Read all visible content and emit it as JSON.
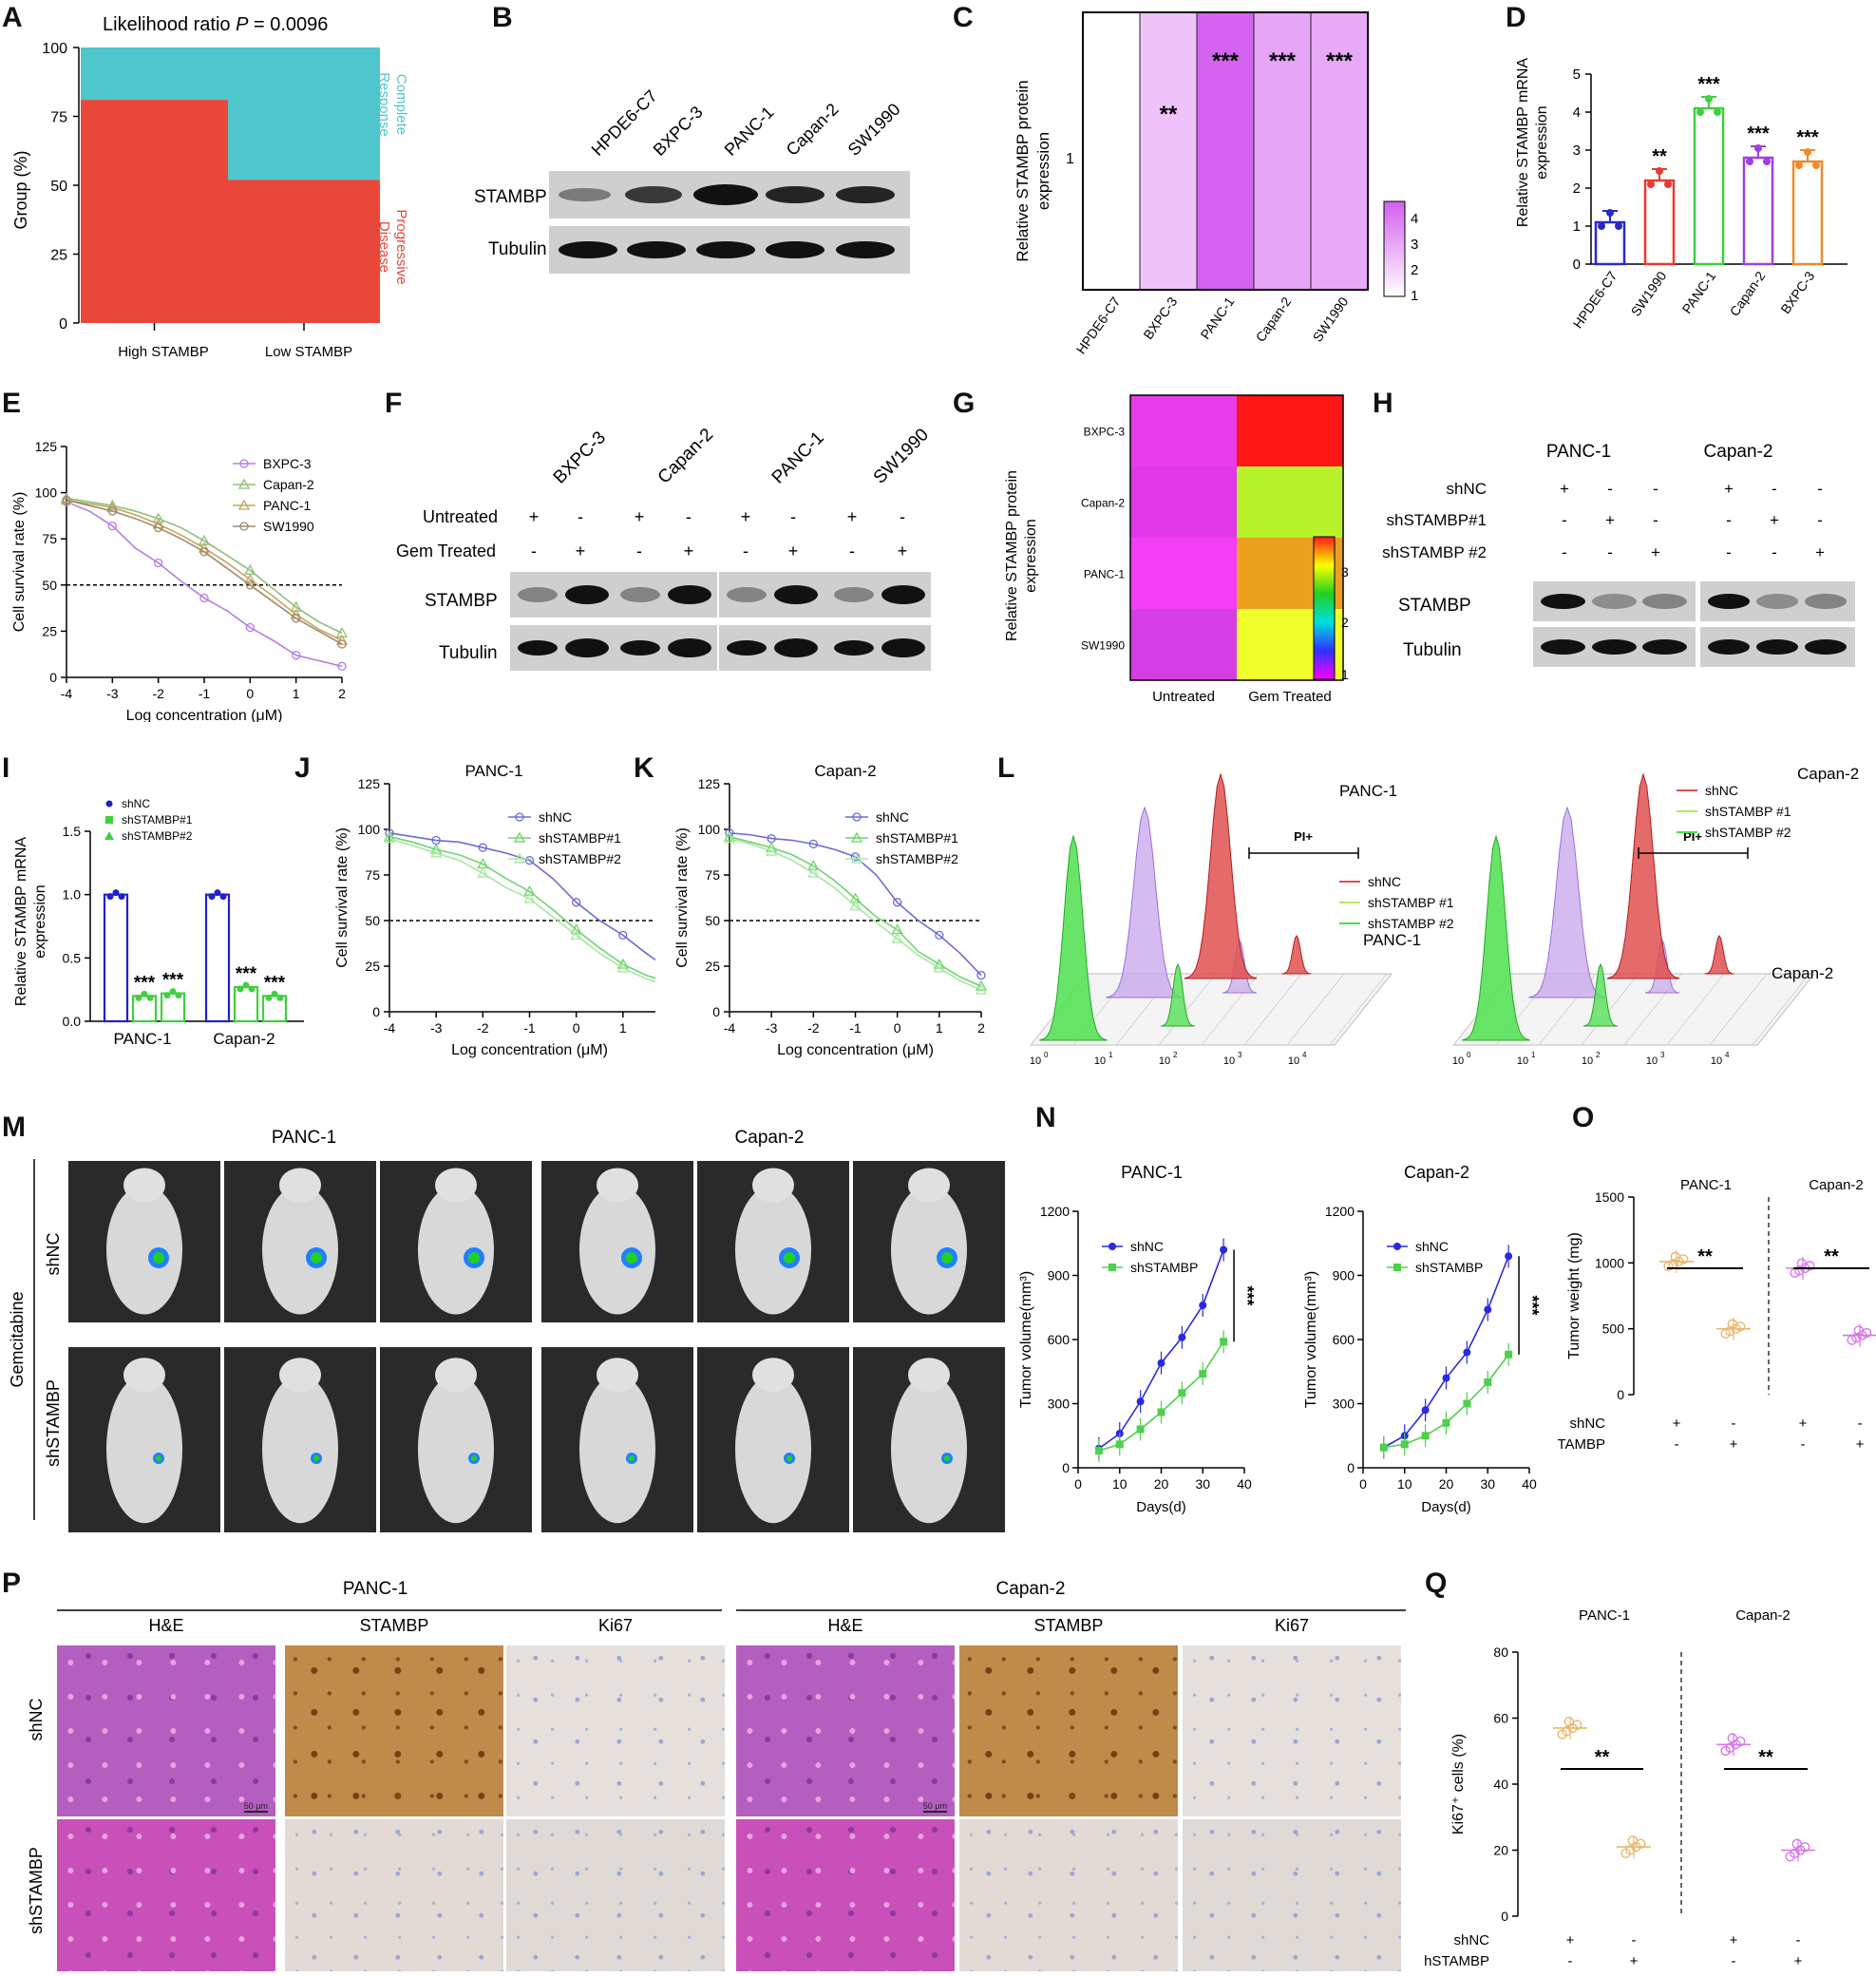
{
  "panels": {
    "A": {
      "letter": "A",
      "title_prefix": "Likelihood ratio ",
      "title_p": "P",
      "title_value": " = 0.0096",
      "ylabel": "Group (%)",
      "yticks": [
        "0",
        "25",
        "50",
        "75",
        "100"
      ],
      "categories": [
        "High STAMBP",
        "Low STAMBP"
      ],
      "legend_top": "Complete Response",
      "legend_bottom": "Progressive Disease",
      "colors": {
        "complete": "#4fc6cc",
        "progressive": "#e8473a"
      }
    },
    "B": {
      "letter": "B",
      "lanes": [
        "HPDE6-C7",
        "BXPC-3",
        "PANC-1",
        "Capan-2",
        "SW1990"
      ],
      "rows": [
        "STAMBP",
        "Tubulin"
      ]
    },
    "C": {
      "letter": "C",
      "ylabel": "Relative STAMBP protein expression",
      "ytick": "1",
      "cols": [
        "HPDE6-C7",
        "BXPC-3",
        "PANC-1",
        "Capan-2",
        "SW1990"
      ],
      "stars": [
        "",
        "**",
        "***",
        "***",
        "***"
      ],
      "scale": [
        "4",
        "3",
        "2",
        "1"
      ]
    },
    "D": {
      "letter": "D",
      "ylabel": "Relative STAMBP mRNA expression",
      "yticks": [
        "0",
        "1",
        "2",
        "3",
        "4",
        "5"
      ],
      "stars": [
        "",
        "**",
        "***",
        "***",
        "***"
      ]
    },
    "E": {
      "letter": "E",
      "ylabel": "Cell survival rate (%)",
      "xlabel": "Log concentration (μM)",
      "yticks": [
        "0",
        "25",
        "50",
        "75",
        "100",
        "125"
      ],
      "xticks": [
        "-4",
        "-3",
        "-2",
        "-1",
        "0",
        "1",
        "2"
      ],
      "legend": [
        "BXPC-3",
        "Capan-2",
        "PANC-1",
        "SW1990"
      ]
    },
    "F": {
      "letter": "F",
      "groups": [
        "BXPC-3",
        "Capan-2",
        "PANC-1",
        "SW1990"
      ],
      "cond1": "Untreated",
      "cond2": "Gem Treated",
      "rows": [
        "STAMBP",
        "Tubulin"
      ],
      "plus": "+",
      "minus": "-"
    },
    "G": {
      "letter": "G",
      "ylabel": "Relative STAMBP protein expression",
      "rows": [
        "BXPC-3",
        "Capan-2",
        "PANC-1",
        "SW1990"
      ],
      "cols": [
        "Untreated",
        "Gem Treated"
      ],
      "scale": [
        "3",
        "2",
        "1"
      ]
    },
    "H": {
      "letter": "H",
      "groups": [
        "PANC-1",
        "Capan-2"
      ],
      "conds": [
        "shNC",
        "shSTAMBP#1",
        "shSTAMBP #2"
      ],
      "rows": [
        "STAMBP",
        "Tubulin"
      ]
    },
    "I": {
      "letter": "I",
      "ylabel": "Relative STAMBP mRNA expression",
      "legend": [
        "shNC",
        "shSTAMBP#1",
        "shSTAMBP#2"
      ],
      "yticks": [
        "0.0",
        "0.5",
        "1.0",
        "1.5"
      ],
      "categories": [
        "PANC-1",
        "Capan-2"
      ],
      "stars": "***"
    },
    "J": {
      "letter": "J",
      "title": "PANC-1",
      "legend": [
        "shNC",
        "shSTAMBP#1",
        "shSTAMBP#2"
      ]
    },
    "K": {
      "letter": "K",
      "title": "Capan-2",
      "legend": [
        "shNC",
        "shSTAMBP#1",
        "shSTAMBP#2"
      ]
    },
    "L": {
      "letter": "L",
      "left_title": "PANC-1",
      "right_title": "Capan-2",
      "gate": "PI+",
      "legend": [
        "shNC",
        "shSTAMBP #1",
        "shSTAMBP #2"
      ],
      "xticks": [
        "10",
        "10",
        "10",
        "10",
        "10"
      ],
      "exps": [
        "0",
        "1",
        "2",
        "3",
        "4"
      ]
    },
    "M": {
      "letter": "M",
      "groups": [
        "PANC-1",
        "Capan-2"
      ],
      "rows": [
        "shNC",
        "shSTAMBP"
      ],
      "side": "Gemcitabine"
    },
    "N": {
      "letter": "N",
      "titles": [
        "PANC-1",
        "Capan-2"
      ],
      "ylabel": "Tumor volume(mm³)",
      "xlabel": "Days(d)",
      "yticks": [
        "0",
        "300",
        "600",
        "900",
        "1200"
      ],
      "xticks": [
        "0",
        "10",
        "20",
        "30",
        "40"
      ],
      "legend": [
        "shNC",
        "shSTAMBP"
      ],
      "stars": "***"
    },
    "O": {
      "letter": "O",
      "titles": [
        "PANC-1",
        "Capan-2"
      ],
      "ylabel": "Tumor weight (mg)",
      "yticks": [
        "0",
        "500",
        "1000",
        "1500"
      ],
      "rows": [
        "shNC",
        "shSTAMBP"
      ],
      "stars": "**"
    },
    "P": {
      "letter": "P",
      "groups": [
        "PANC-1",
        "Capan-2"
      ],
      "stains": [
        "H&E",
        "STAMBP",
        "Ki67"
      ],
      "rows": [
        "shNC",
        "shSTAMBP"
      ],
      "scalebar": "50 μm"
    },
    "Q": {
      "letter": "Q",
      "titles": [
        "PANC-1",
        "Capan-2"
      ],
      "ylabel": "Ki67⁺ cells (%)",
      "yticks": [
        "0",
        "20",
        "40",
        "60",
        "80"
      ],
      "rows": [
        "shNC",
        "shSTAMBP"
      ],
      "stars": "**"
    }
  },
  "chart_data": [
    {
      "type": "bar",
      "panel": "A",
      "categories": [
        "High STAMBP",
        "Low STAMBP"
      ],
      "series": [
        {
          "name": "Progressive Disease",
          "values": [
            81,
            52
          ]
        },
        {
          "name": "Complete Response",
          "values": [
            19,
            48
          ]
        }
      ],
      "ylim": [
        0,
        100
      ],
      "ylabel": "Group (%)"
    },
    {
      "type": "heatmap",
      "panel": "C",
      "x": [
        "HPDE6-C7",
        "BXPC-3",
        "PANC-1",
        "Capan-2",
        "SW1990"
      ],
      "values": [
        1.0,
        2.2,
        4.1,
        2.8,
        2.7
      ]
    },
    {
      "type": "bar",
      "panel": "D",
      "categories": [
        "HPDE6-C7",
        "SW1990",
        "PANC-1",
        "Capan-2",
        "BXPC-3"
      ],
      "values": [
        1.1,
        2.2,
        4.1,
        2.8,
        2.7
      ],
      "colors": [
        "#2929c8",
        "#e83a2e",
        "#3fcf3f",
        "#a040e0",
        "#f08a2a"
      ],
      "ylim": [
        0,
        5
      ]
    },
    {
      "type": "line",
      "panel": "E",
      "x": [
        -4,
        -3.5,
        -3,
        -2.5,
        -2,
        -1.5,
        -1,
        -0.5,
        0,
        0.5,
        1,
        1.5,
        2
      ],
      "series": [
        {
          "name": "BXPC-3",
          "values": [
            95,
            90,
            82,
            70,
            62,
            52,
            43,
            36,
            27,
            20,
            12,
            9,
            6
          ]
        },
        {
          "name": "Capan-2",
          "values": [
            97,
            95,
            93,
            90,
            86,
            81,
            74,
            66,
            58,
            48,
            38,
            30,
            24
          ]
        },
        {
          "name": "PANC-1",
          "values": [
            96,
            94,
            92,
            88,
            83,
            77,
            70,
            62,
            53,
            44,
            34,
            26,
            20
          ]
        },
        {
          "name": "SW1990",
          "values": [
            96,
            93,
            90,
            86,
            81,
            75,
            68,
            59,
            50,
            41,
            32,
            25,
            18
          ]
        }
      ],
      "ylim": [
        0,
        125
      ]
    },
    {
      "type": "heatmap",
      "panel": "G",
      "rows": [
        "BXPC-3",
        "Capan-2",
        "PANC-1",
        "SW1990"
      ],
      "cols": [
        "Untreated",
        "Gem Treated"
      ],
      "values": [
        [
          1.0,
          3.6
        ],
        [
          1.0,
          2.6
        ],
        [
          1.0,
          3.1
        ],
        [
          1.0,
          2.9
        ]
      ]
    },
    {
      "type": "bar",
      "panel": "I",
      "categories": [
        "PANC-1",
        "Capan-2"
      ],
      "series": [
        {
          "name": "shNC",
          "values": [
            1.0,
            1.0
          ]
        },
        {
          "name": "shSTAMBP#1",
          "values": [
            0.2,
            0.27
          ]
        },
        {
          "name": "shSTAMBP#2",
          "values": [
            0.22,
            0.2
          ]
        }
      ],
      "ylim": [
        0,
        1.5
      ]
    },
    {
      "type": "line",
      "panel": "J",
      "x": [
        -4,
        -3.5,
        -3,
        -2.5,
        -2,
        -1.5,
        -1,
        -0.5,
        0,
        0.5,
        1,
        1.5,
        2
      ],
      "series": [
        {
          "name": "shNC",
          "values": [
            98,
            96,
            94,
            93,
            90,
            87,
            83,
            73,
            60,
            50,
            42,
            32,
            23
          ]
        },
        {
          "name": "shSTAMBP#1",
          "values": [
            96,
            93,
            89,
            86,
            81,
            73,
            66,
            56,
            45,
            35,
            26,
            20,
            16
          ]
        },
        {
          "name": "shSTAMBP#2",
          "values": [
            95,
            91,
            87,
            83,
            76,
            68,
            62,
            52,
            42,
            32,
            24,
            18,
            14
          ]
        }
      ],
      "ylim": [
        0,
        125
      ]
    },
    {
      "type": "line",
      "panel": "K",
      "x": [
        -4,
        -3.5,
        -3,
        -2.5,
        -2,
        -1.5,
        -1,
        -0.5,
        0,
        0.5,
        1,
        1.5,
        2
      ],
      "series": [
        {
          "name": "shNC",
          "values": [
            98,
            97,
            95,
            94,
            92,
            89,
            85,
            75,
            60,
            50,
            42,
            32,
            20
          ]
        },
        {
          "name": "shSTAMBP#1",
          "values": [
            96,
            93,
            90,
            86,
            80,
            72,
            62,
            52,
            45,
            33,
            26,
            19,
            14
          ]
        },
        {
          "name": "shSTAMBP#2",
          "values": [
            95,
            92,
            88,
            83,
            76,
            68,
            58,
            49,
            40,
            31,
            24,
            17,
            12
          ]
        }
      ],
      "ylim": [
        0,
        125
      ]
    },
    {
      "type": "line",
      "panel": "N",
      "title": "PANC-1",
      "x": [
        5,
        10,
        15,
        20,
        25,
        30,
        35
      ],
      "series": [
        {
          "name": "shNC",
          "values": [
            90,
            160,
            310,
            490,
            610,
            760,
            1020
          ]
        },
        {
          "name": "shSTAMBP",
          "values": [
            80,
            110,
            180,
            260,
            350,
            440,
            590
          ]
        }
      ],
      "ylim": [
        0,
        1200
      ]
    },
    {
      "type": "line",
      "panel": "N",
      "title": "Capan-2",
      "x": [
        5,
        10,
        15,
        20,
        25,
        30,
        35
      ],
      "series": [
        {
          "name": "shNC",
          "values": [
            95,
            150,
            270,
            420,
            540,
            740,
            990
          ]
        },
        {
          "name": "shSTAMBP",
          "values": [
            95,
            110,
            150,
            210,
            300,
            400,
            530
          ]
        }
      ],
      "ylim": [
        0,
        1200
      ]
    },
    {
      "type": "scatter",
      "panel": "O",
      "categories": [
        "PANC-1 shNC",
        "PANC-1 shSTAMBP",
        "Capan-2 shNC",
        "Capan-2 shSTAMBP"
      ],
      "values": [
        1010,
        500,
        960,
        450
      ],
      "ylim": [
        0,
        1500
      ]
    },
    {
      "type": "scatter",
      "panel": "Q",
      "categories": [
        "PANC-1 shNC",
        "PANC-1 shSTAMBP",
        "Capan-2 shNC",
        "Capan-2 shSTAMBP"
      ],
      "values": [
        57,
        21,
        52,
        20
      ],
      "ylim": [
        0,
        80
      ]
    }
  ]
}
